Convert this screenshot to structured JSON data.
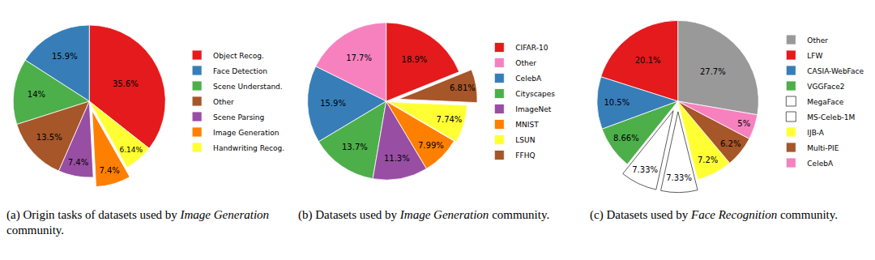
{
  "chart_data": [
    {
      "type": "pie",
      "categories": [
        "Object Recog.",
        "Face Detection",
        "Scene Understand.",
        "Other",
        "Scene Parsing",
        "Image Generation",
        "Handwriting Recog."
      ],
      "values": [
        35.6,
        15.9,
        14,
        13.5,
        7.4,
        7.4,
        6.14
      ],
      "value_labels": [
        "35.6%",
        "15.9%",
        "14%",
        "13.5%",
        "7.4%",
        "7.4%",
        "6.14%"
      ],
      "colors": [
        "#e41a1c",
        "#377eb8",
        "#4daf4a",
        "#a65628",
        "#984ea3",
        "#ff7f00",
        "#ffff33"
      ],
      "data_labels": true,
      "legend": "right",
      "caption": [
        {
          "text": "(a) Origin tasks of datasets used by "
        },
        {
          "text": "Image Generation",
          "italic": true
        },
        {
          "text": " community."
        }
      ]
    },
    {
      "type": "pie",
      "categories": [
        "CIFAR-10",
        "Other",
        "CelebA",
        "Cityscapes",
        "ImageNet",
        "MNIST",
        "LSUN",
        "FFHQ"
      ],
      "values": [
        18.9,
        17.7,
        15.9,
        13.7,
        11.3,
        7.99,
        7.74,
        6.81
      ],
      "value_labels": [
        "18.9%",
        "17.7%",
        "15.9%",
        "13.7%",
        "11.3%",
        "7.99%",
        "7.74%",
        "6.81%"
      ],
      "colors": [
        "#e41a1c",
        "#f781bf",
        "#377eb8",
        "#4daf4a",
        "#984ea3",
        "#ff7f00",
        "#ffff33",
        "#a65628"
      ],
      "data_labels": true,
      "legend": "right",
      "caption": [
        {
          "text": "(b) Datasets used by "
        },
        {
          "text": "Image Generation",
          "italic": true
        },
        {
          "text": " community."
        }
      ]
    },
    {
      "type": "pie",
      "categories": [
        "Other",
        "LFW",
        "CASIA-WebFace",
        "VGGFace2",
        "MegaFace",
        "MS-Celeb-1M",
        "IJB-A",
        "Multi-PIE",
        "CelebA"
      ],
      "values": [
        27.7,
        20.1,
        10.5,
        8.66,
        7.33,
        7.33,
        7.2,
        6.2,
        5
      ],
      "value_labels": [
        "27.7%",
        "20.1%",
        "10.5%",
        "8.66%",
        "7.33%",
        "7.33%",
        "7.2%",
        "6.2%",
        "5%"
      ],
      "colors": [
        "#999999",
        "#e41a1c",
        "#377eb8",
        "#4daf4a",
        "#ffffff",
        "#ffffff",
        "#ffff33",
        "#a65628",
        "#f781bf"
      ],
      "data_labels": true,
      "legend": "right",
      "caption": [
        {
          "text": "(c) Datasets used by "
        },
        {
          "text": "Face Recognition",
          "italic": true
        },
        {
          "text": " community."
        }
      ]
    }
  ]
}
